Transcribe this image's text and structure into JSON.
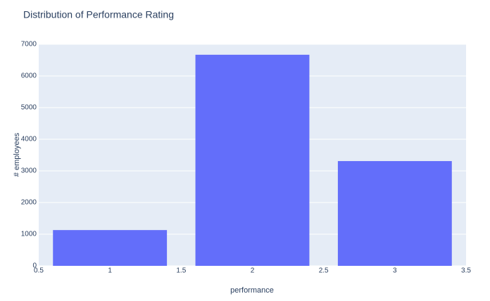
{
  "chart_data": {
    "type": "bar",
    "title": "Distribution of Performance Rating",
    "x": [
      1,
      2,
      3
    ],
    "values": [
      1130,
      6670,
      3310
    ],
    "color": "#636efa",
    "xlabel": "performance",
    "ylabel": "# employees",
    "xlim": [
      0.5,
      3.5
    ],
    "xticks": [
      0.5,
      1,
      1.5,
      2,
      2.5,
      3,
      3.5
    ],
    "ylim": [
      0,
      7000
    ],
    "yticks": [
      0,
      1000,
      2000,
      3000,
      4000,
      5000,
      6000,
      7000
    ],
    "grid": true,
    "background": "#e5ecf6"
  }
}
